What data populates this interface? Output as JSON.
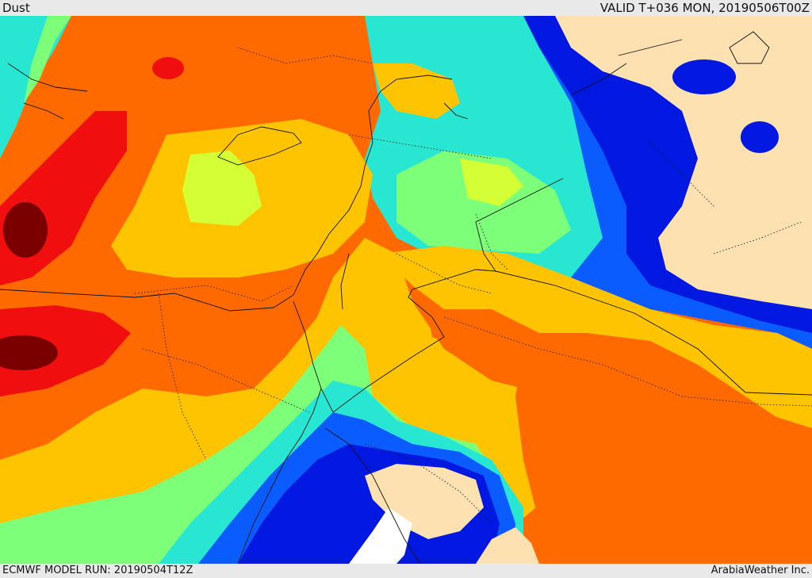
{
  "header": {
    "title": "Dust",
    "valid_time": "VALID T+036 MON, 20190506T00Z"
  },
  "footer": {
    "model_run": "ECMWF MODEL RUN: 20190504T12Z",
    "credit": "ArabiaWeather Inc."
  },
  "map": {
    "field": "dust",
    "palette": {
      "none": "#fde1b1",
      "very_low_dark": "#0018e0",
      "very_low": "#0a5cff",
      "low_blue": "#14a8ff",
      "low_cyan": "#27e7d2",
      "low_green": "#7dff79",
      "mid_yellow_green": "#d4ff34",
      "mid_yellow": "#ffc400",
      "high_orange": "#ff6a00",
      "very_high_red": "#f00e0e",
      "extreme": "#7a0000",
      "sea_gap": "#ffffff"
    }
  }
}
